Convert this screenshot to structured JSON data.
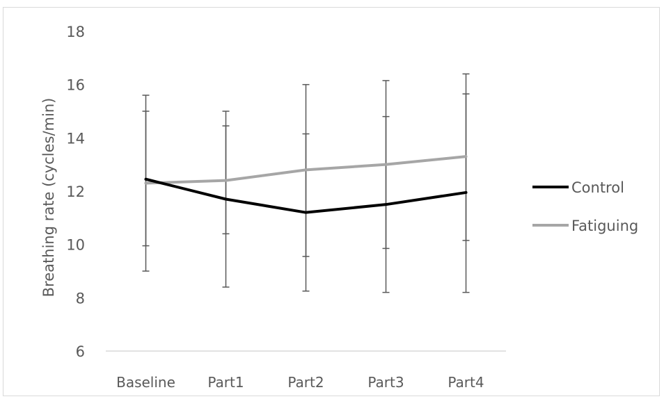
{
  "chart_data": {
    "type": "line",
    "categories": [
      "Baseline",
      "Part1",
      "Part2",
      "Part3",
      "Part4"
    ],
    "ylabel": "Breathing rate (cycles/min)",
    "ylim": [
      6,
      18
    ],
    "yticks": [
      6,
      8,
      10,
      12,
      14,
      16,
      18
    ],
    "grid": false,
    "legend_position": "right",
    "series": [
      {
        "name": "Control",
        "color": "#000000",
        "values": [
          12.45,
          11.7,
          11.2,
          11.5,
          11.95
        ],
        "error_bars": [
          {
            "lower": 9.95,
            "upper": 15.0
          },
          {
            "lower": 8.4,
            "upper": 15.0
          },
          {
            "lower": 8.25,
            "upper": 14.15
          },
          {
            "lower": 8.2,
            "upper": 14.8
          },
          {
            "lower": 8.2,
            "upper": 15.65
          }
        ]
      },
      {
        "name": "Fatiguing",
        "color": "#a6a6a6",
        "values": [
          12.3,
          12.4,
          12.8,
          13.0,
          13.3
        ],
        "error_bars": [
          {
            "lower": 9.0,
            "upper": 15.6
          },
          {
            "lower": 10.4,
            "upper": 14.45
          },
          {
            "lower": 9.55,
            "upper": 16.0
          },
          {
            "lower": 9.85,
            "upper": 16.15
          },
          {
            "lower": 10.15,
            "upper": 16.4
          }
        ]
      }
    ]
  }
}
